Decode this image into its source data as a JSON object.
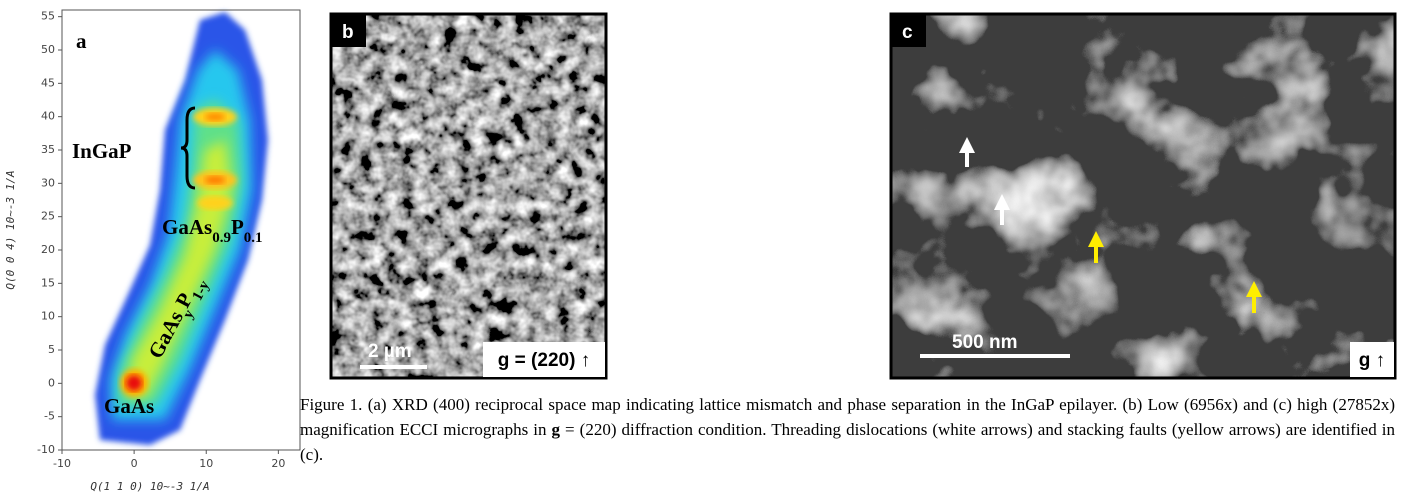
{
  "panel_a": {
    "label": "a",
    "xlim": [
      -10,
      23
    ],
    "ylim": [
      -10,
      56
    ],
    "xticks": [
      -10,
      0,
      10,
      20
    ],
    "yticks": [
      -10,
      -5,
      0,
      5,
      10,
      15,
      20,
      25,
      30,
      35,
      40,
      45,
      50,
      55
    ],
    "xlabel": "Q(1 1 0)   10~-3 1/A",
    "ylabel": "Q(0 0 4)   10~-3 1/A",
    "annotations": {
      "ingap": "InGaP",
      "gaas09": [
        "GaAs",
        "0.9",
        "P",
        "0.1"
      ],
      "gaasy": [
        "GaAs",
        "y",
        "P",
        "1-y"
      ],
      "gaas": "GaAs"
    }
  },
  "panel_b": {
    "label": "b",
    "scale_bar": "2 µm",
    "g_vector": "g = (220) ↑"
  },
  "panel_c": {
    "label": "c",
    "scale_bar": "500 nm",
    "g_vector": "g ↑"
  },
  "caption": [
    "Figure 1. (a) XRD (400) reciprocal space map indicating lattice mismatch and phase separation in the InGaP epilayer. (b) Low (6956x) and (c) high (27852x) magnification ECCI micrographs in ",
    "g",
    " = (220) diffraction condition.  Threading dislocations (white arrows) and stacking faults (yellow arrows) are identified in (c)."
  ]
}
